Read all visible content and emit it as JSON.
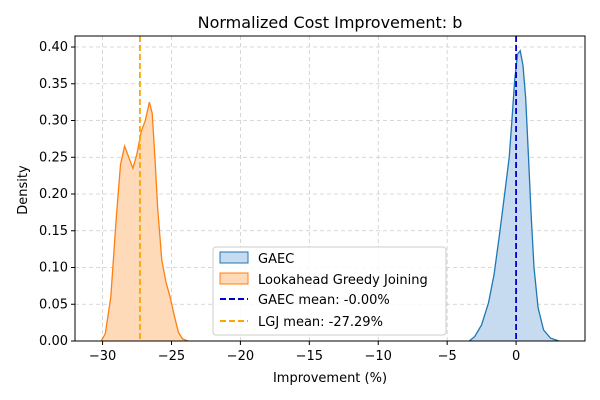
{
  "chart_data": {
    "type": "area",
    "title": "Normalized Cost Improvement: b",
    "xlabel": "Improvement (%)",
    "ylabel": "Density",
    "xlim": [
      -32,
      5
    ],
    "ylim": [
      0,
      0.415
    ],
    "xticks": [
      -30,
      -25,
      -20,
      -15,
      -10,
      -5,
      0
    ],
    "xtick_labels": [
      "−30",
      "−25",
      "−20",
      "−15",
      "−10",
      "−5",
      "0"
    ],
    "yticks": [
      0.0,
      0.05,
      0.1,
      0.15,
      0.2,
      0.25,
      0.3,
      0.35,
      0.4
    ],
    "ytick_labels": [
      "0.00",
      "0.05",
      "0.10",
      "0.15",
      "0.20",
      "0.25",
      "0.30",
      "0.35",
      "0.40"
    ],
    "grid": true,
    "legend_position": "bottom-center",
    "series": [
      {
        "name": "GAEC",
        "color": "#1f77b4",
        "fill": "#c6dbef",
        "x": [
          -3.4,
          -3.0,
          -2.5,
          -2.0,
          -1.6,
          -1.2,
          -0.8,
          -0.5,
          -0.3,
          -0.1,
          0.1,
          0.3,
          0.5,
          0.7,
          0.9,
          1.1,
          1.3,
          1.6,
          2.0,
          2.5,
          3.1
        ],
        "y": [
          0.0,
          0.006,
          0.022,
          0.052,
          0.09,
          0.145,
          0.205,
          0.25,
          0.3,
          0.355,
          0.39,
          0.395,
          0.375,
          0.33,
          0.25,
          0.17,
          0.1,
          0.045,
          0.015,
          0.004,
          0.0
        ]
      },
      {
        "name": "Lookahead Greedy Joining",
        "color": "#ff7f0e",
        "fill": "#ffdab9",
        "x": [
          -30.1,
          -29.8,
          -29.4,
          -29.0,
          -28.7,
          -28.4,
          -28.1,
          -27.8,
          -27.5,
          -27.2,
          -26.9,
          -26.6,
          -26.4,
          -26.2,
          -26.0,
          -25.7,
          -25.4,
          -25.1,
          -24.8,
          -24.5,
          -24.2,
          -23.8
        ],
        "y": [
          0.0,
          0.01,
          0.06,
          0.17,
          0.24,
          0.265,
          0.25,
          0.235,
          0.255,
          0.285,
          0.3,
          0.325,
          0.31,
          0.25,
          0.18,
          0.11,
          0.08,
          0.06,
          0.035,
          0.012,
          0.003,
          0.0
        ]
      }
    ],
    "mean_lines": [
      {
        "name": "GAEC mean: -0.00%",
        "x": 0.0,
        "color": "#0000cd"
      },
      {
        "name": "LGJ mean: -27.29%",
        "x": -27.29,
        "color": "#ffa500"
      }
    ]
  }
}
